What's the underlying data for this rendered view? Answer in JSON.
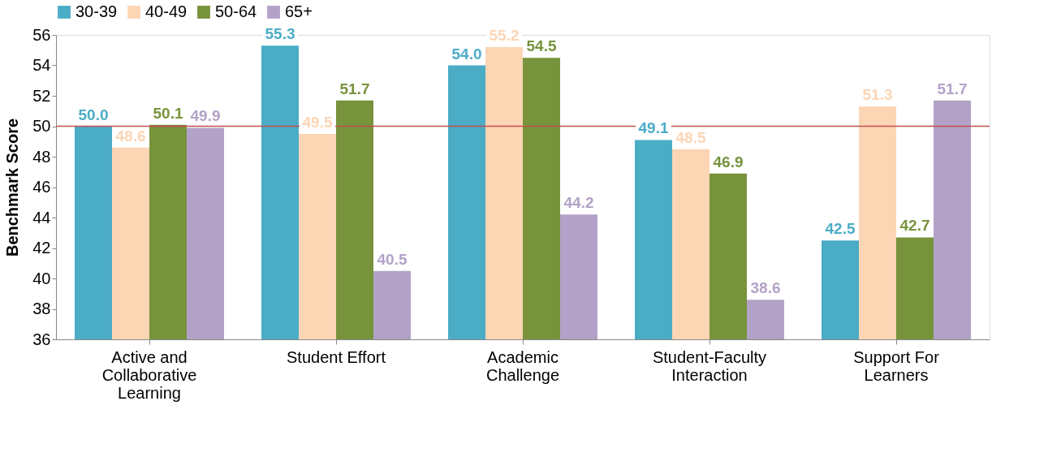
{
  "chart_data": {
    "type": "bar",
    "ylabel": "Benchmark Score",
    "categories": [
      "Active and\nCollaborative\nLearning",
      "Student Effort",
      "Academic\nChallenge",
      "Student-Faculty\nInteraction",
      "Support For\nLearners"
    ],
    "series": [
      {
        "name": "30-39",
        "color": "#4bacc6",
        "values": [
          50.0,
          55.3,
          54.0,
          49.1,
          42.5
        ],
        "value_labels": [
          "50.0",
          "55.3",
          "54.0",
          "49.1",
          "42.5"
        ]
      },
      {
        "name": "40-49",
        "color": "#fcd5b5",
        "values": [
          48.6,
          49.5,
          55.2,
          48.5,
          51.3
        ]
      },
      {
        "name": "50-64",
        "color": "#77933c",
        "values": [
          50.1,
          51.7,
          54.5,
          46.9,
          42.7
        ]
      },
      {
        "name": "65+",
        "color": "#b3a2c7",
        "values": [
          49.9,
          40.5,
          44.2,
          38.6,
          51.7
        ]
      }
    ],
    "ylim": [
      36,
      56
    ],
    "yticks": [
      36,
      38,
      40,
      42,
      44,
      46,
      48,
      50,
      52,
      54,
      56
    ],
    "ref_lines": [
      {
        "axis": "y",
        "value": 50,
        "label": null,
        "color": "#c0504d"
      }
    ],
    "data_labels": true,
    "legend": "top",
    "grid": false
  }
}
